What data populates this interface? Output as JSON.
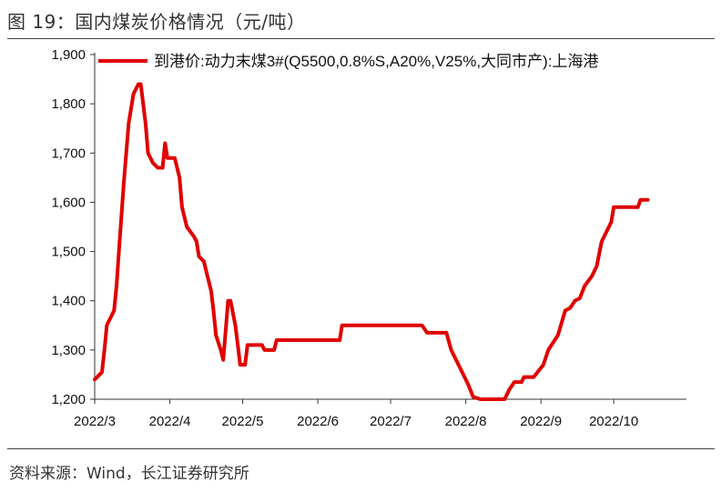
{
  "figure": {
    "title": "图 19：国内煤炭价格情况（元/吨）",
    "source": "资料来源：Wind，长江证券研究所"
  },
  "colors": {
    "series": "#e00000",
    "axis": "#333333"
  },
  "chart_data": {
    "type": "line",
    "title": "国内煤炭价格情况（元/吨）",
    "xlabel": "",
    "ylabel": "",
    "ylim": [
      1200,
      1900
    ],
    "yticks": [
      1200,
      1300,
      1400,
      1500,
      1600,
      1700,
      1800,
      1900
    ],
    "ytick_labels": [
      "1,200",
      "1,300",
      "1,400",
      "1,500",
      "1,600",
      "1,700",
      "1,800",
      "1,900"
    ],
    "xlim": [
      "2022-03-01",
      "2022-10-31"
    ],
    "xticks": [
      "2022-03-01",
      "2022-04-01",
      "2022-05-01",
      "2022-06-01",
      "2022-07-01",
      "2022-08-01",
      "2022-09-01",
      "2022-10-01"
    ],
    "xtick_labels": [
      "2022/3",
      "2022/4",
      "2022/5",
      "2022/6",
      "2022/7",
      "2022/8",
      "2022/9",
      "2022/10"
    ],
    "grid": false,
    "legend": "top",
    "series": [
      {
        "name": "到港价:动力末煤3#(Q5500,0.8%S,A20%,V25%,大同市产):上海港",
        "points": [
          [
            "2022-03-01",
            1240
          ],
          [
            "2022-03-04",
            1255
          ],
          [
            "2022-03-05",
            1300
          ],
          [
            "2022-03-06",
            1350
          ],
          [
            "2022-03-08",
            1370
          ],
          [
            "2022-03-09",
            1380
          ],
          [
            "2022-03-10",
            1430
          ],
          [
            "2022-03-11",
            1500
          ],
          [
            "2022-03-13",
            1640
          ],
          [
            "2022-03-15",
            1760
          ],
          [
            "2022-03-17",
            1820
          ],
          [
            "2022-03-19",
            1840
          ],
          [
            "2022-03-20",
            1840
          ],
          [
            "2022-03-22",
            1760
          ],
          [
            "2022-03-23",
            1700
          ],
          [
            "2022-03-25",
            1680
          ],
          [
            "2022-03-27",
            1670
          ],
          [
            "2022-03-29",
            1670
          ],
          [
            "2022-03-30",
            1720
          ],
          [
            "2022-03-31",
            1690
          ],
          [
            "2022-04-03",
            1690
          ],
          [
            "2022-04-05",
            1650
          ],
          [
            "2022-04-06",
            1590
          ],
          [
            "2022-04-08",
            1550
          ],
          [
            "2022-04-11",
            1530
          ],
          [
            "2022-04-12",
            1520
          ],
          [
            "2022-04-13",
            1490
          ],
          [
            "2022-04-15",
            1480
          ],
          [
            "2022-04-16",
            1460
          ],
          [
            "2022-04-18",
            1420
          ],
          [
            "2022-04-19",
            1380
          ],
          [
            "2022-04-20",
            1330
          ],
          [
            "2022-04-22",
            1300
          ],
          [
            "2022-04-23",
            1280
          ],
          [
            "2022-04-24",
            1340
          ],
          [
            "2022-04-25",
            1400
          ],
          [
            "2022-04-26",
            1400
          ],
          [
            "2022-04-28",
            1350
          ],
          [
            "2022-04-29",
            1310
          ],
          [
            "2022-04-30",
            1270
          ],
          [
            "2022-05-02",
            1270
          ],
          [
            "2022-05-03",
            1310
          ],
          [
            "2022-05-09",
            1310
          ],
          [
            "2022-05-10",
            1300
          ],
          [
            "2022-05-14",
            1300
          ],
          [
            "2022-05-15",
            1320
          ],
          [
            "2022-06-10",
            1320
          ],
          [
            "2022-06-11",
            1350
          ],
          [
            "2022-07-14",
            1350
          ],
          [
            "2022-07-16",
            1335
          ],
          [
            "2022-07-24",
            1335
          ],
          [
            "2022-07-26",
            1300
          ],
          [
            "2022-07-29",
            1270
          ],
          [
            "2022-07-31",
            1250
          ],
          [
            "2022-08-02",
            1230
          ],
          [
            "2022-08-04",
            1205
          ],
          [
            "2022-08-07",
            1200
          ],
          [
            "2022-08-17",
            1200
          ],
          [
            "2022-08-19",
            1220
          ],
          [
            "2022-08-21",
            1235
          ],
          [
            "2022-08-24",
            1235
          ],
          [
            "2022-08-25",
            1245
          ],
          [
            "2022-08-29",
            1245
          ],
          [
            "2022-09-02",
            1270
          ],
          [
            "2022-09-04",
            1300
          ],
          [
            "2022-09-08",
            1330
          ],
          [
            "2022-09-11",
            1380
          ],
          [
            "2022-09-13",
            1385
          ],
          [
            "2022-09-15",
            1400
          ],
          [
            "2022-09-17",
            1405
          ],
          [
            "2022-09-19",
            1430
          ],
          [
            "2022-09-22",
            1450
          ],
          [
            "2022-09-24",
            1470
          ],
          [
            "2022-09-26",
            1520
          ],
          [
            "2022-09-28",
            1540
          ],
          [
            "2022-09-30",
            1560
          ],
          [
            "2022-10-01",
            1590
          ],
          [
            "2022-10-11",
            1590
          ],
          [
            "2022-10-12",
            1605
          ],
          [
            "2022-10-15",
            1605
          ]
        ]
      }
    ]
  }
}
